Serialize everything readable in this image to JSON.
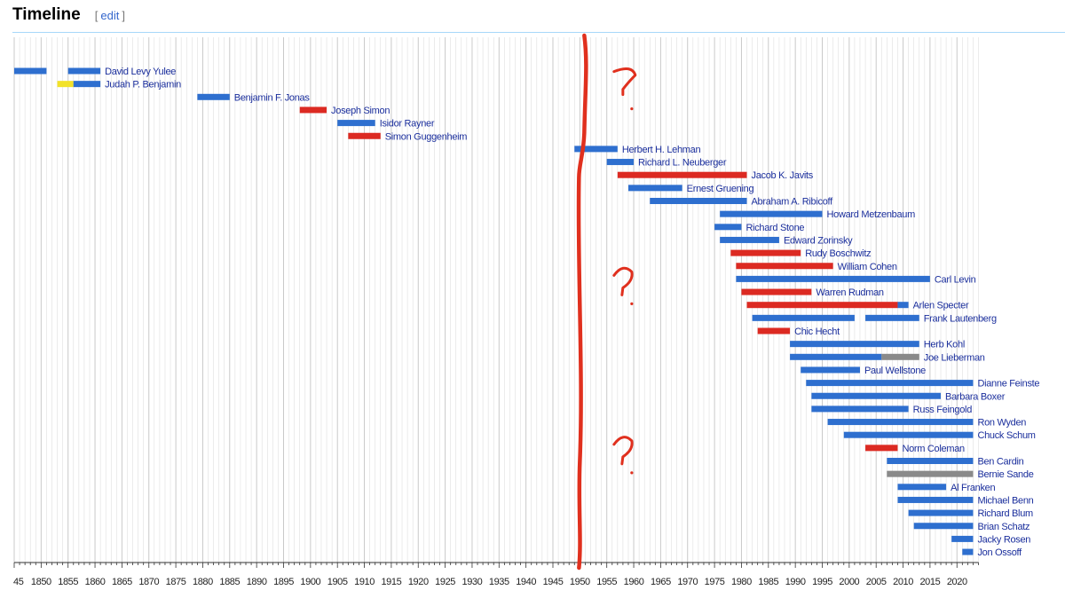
{
  "section": {
    "title": "Timeline",
    "edit_open": "[",
    "edit_label": "edit",
    "edit_close": "]"
  },
  "colors": {
    "democrat": "#2e6fcf",
    "republican": "#dc2a22",
    "independent": "#8a8a8a",
    "whig": "#f2e22a",
    "annotation": "#e0301e",
    "gridline": "#c4c4c4"
  },
  "axis": {
    "year_start": 1845,
    "year_end": 2024,
    "tick_labels": [
      "45",
      "1850",
      "1855",
      "1860",
      "1865",
      "1870",
      "1875",
      "1880",
      "1885",
      "1890",
      "1895",
      "1900",
      "1905",
      "1910",
      "1915",
      "1920",
      "1925",
      "1930",
      "1935",
      "1940",
      "1945",
      "1950",
      "1955",
      "1960",
      "1965",
      "1970",
      "1975",
      "1980",
      "1985",
      "1990",
      "1995",
      "2000",
      "2005",
      "2010",
      "2015",
      "2020"
    ]
  },
  "chart_data": {
    "type": "timeline",
    "title": "Timeline",
    "x_unit": "year",
    "xlim": [
      1845,
      2024
    ],
    "grid": true,
    "series": [
      {
        "name": "David Levy Yulee",
        "segments": [
          {
            "start": 1845,
            "end": 1851,
            "party": "democrat"
          },
          {
            "start": 1855,
            "end": 1861,
            "party": "democrat"
          }
        ]
      },
      {
        "name": "Judah P. Benjamin",
        "segments": [
          {
            "start": 1853,
            "end": 1856,
            "party": "whig"
          },
          {
            "start": 1856,
            "end": 1861,
            "party": "democrat"
          }
        ]
      },
      {
        "name": "Benjamin F. Jonas",
        "segments": [
          {
            "start": 1879,
            "end": 1885,
            "party": "democrat"
          }
        ]
      },
      {
        "name": "Joseph Simon",
        "segments": [
          {
            "start": 1898,
            "end": 1903,
            "party": "republican"
          }
        ]
      },
      {
        "name": "Isidor Rayner",
        "segments": [
          {
            "start": 1905,
            "end": 1912,
            "party": "democrat"
          }
        ]
      },
      {
        "name": "Simon Guggenheim",
        "segments": [
          {
            "start": 1907,
            "end": 1913,
            "party": "republican"
          }
        ]
      },
      {
        "name": "Herbert H. Lehman",
        "segments": [
          {
            "start": 1949,
            "end": 1957,
            "party": "democrat"
          }
        ]
      },
      {
        "name": "Richard L. Neuberger",
        "segments": [
          {
            "start": 1955,
            "end": 1960,
            "party": "democrat"
          }
        ]
      },
      {
        "name": "Jacob K. Javits",
        "segments": [
          {
            "start": 1957,
            "end": 1981,
            "party": "republican"
          }
        ]
      },
      {
        "name": "Ernest Gruening",
        "segments": [
          {
            "start": 1959,
            "end": 1969,
            "party": "democrat"
          }
        ]
      },
      {
        "name": "Abraham A. Ribicoff",
        "segments": [
          {
            "start": 1963,
            "end": 1981,
            "party": "democrat"
          }
        ]
      },
      {
        "name": "Howard Metzenbaum",
        "segments": [
          {
            "start": 1976,
            "end": 1995,
            "party": "democrat"
          }
        ]
      },
      {
        "name": "Richard Stone",
        "segments": [
          {
            "start": 1975,
            "end": 1980,
            "party": "democrat"
          }
        ]
      },
      {
        "name": "Edward Zorinsky",
        "segments": [
          {
            "start": 1976,
            "end": 1987,
            "party": "democrat"
          }
        ]
      },
      {
        "name": "Rudy Boschwitz",
        "segments": [
          {
            "start": 1978,
            "end": 1991,
            "party": "republican"
          }
        ]
      },
      {
        "name": "William Cohen",
        "segments": [
          {
            "start": 1979,
            "end": 1997,
            "party": "republican"
          }
        ]
      },
      {
        "name": "Carl Levin",
        "segments": [
          {
            "start": 1979,
            "end": 2015,
            "party": "democrat"
          }
        ]
      },
      {
        "name": "Warren Rudman",
        "segments": [
          {
            "start": 1980,
            "end": 1993,
            "party": "republican"
          }
        ]
      },
      {
        "name": "Arlen Specter",
        "segments": [
          {
            "start": 1981,
            "end": 2009,
            "party": "republican"
          },
          {
            "start": 2009,
            "end": 2011,
            "party": "democrat"
          }
        ]
      },
      {
        "name": "Frank Lautenberg",
        "segments": [
          {
            "start": 1982,
            "end": 2001,
            "party": "democrat"
          },
          {
            "start": 2003,
            "end": 2013,
            "party": "democrat"
          }
        ]
      },
      {
        "name": "Chic Hecht",
        "segments": [
          {
            "start": 1983,
            "end": 1989,
            "party": "republican"
          }
        ]
      },
      {
        "name": "Herb Kohl",
        "segments": [
          {
            "start": 1989,
            "end": 2013,
            "party": "democrat"
          }
        ]
      },
      {
        "name": "Joe Lieberman",
        "segments": [
          {
            "start": 1989,
            "end": 2006,
            "party": "democrat"
          },
          {
            "start": 2006,
            "end": 2013,
            "party": "independent"
          }
        ]
      },
      {
        "name": "Paul Wellstone",
        "segments": [
          {
            "start": 1991,
            "end": 2002,
            "party": "democrat"
          }
        ]
      },
      {
        "name": "Dianne Feinste",
        "segments": [
          {
            "start": 1992,
            "end": 2023,
            "party": "democrat"
          }
        ]
      },
      {
        "name": "Barbara Boxer",
        "segments": [
          {
            "start": 1993,
            "end": 2017,
            "party": "democrat"
          }
        ]
      },
      {
        "name": "Russ Feingold",
        "segments": [
          {
            "start": 1993,
            "end": 2011,
            "party": "democrat"
          }
        ]
      },
      {
        "name": "Ron Wyden",
        "segments": [
          {
            "start": 1996,
            "end": 2023,
            "party": "democrat"
          }
        ]
      },
      {
        "name": "Chuck Schum",
        "segments": [
          {
            "start": 1999,
            "end": 2023,
            "party": "democrat"
          }
        ]
      },
      {
        "name": "Norm Coleman",
        "segments": [
          {
            "start": 2003,
            "end": 2009,
            "party": "republican"
          }
        ]
      },
      {
        "name": "Ben Cardin",
        "segments": [
          {
            "start": 2007,
            "end": 2023,
            "party": "democrat"
          }
        ]
      },
      {
        "name": "Bernie Sande",
        "segments": [
          {
            "start": 2007,
            "end": 2023,
            "party": "independent"
          }
        ]
      },
      {
        "name": "Al Franken",
        "segments": [
          {
            "start": 2009,
            "end": 2018,
            "party": "democrat"
          }
        ]
      },
      {
        "name": "Michael Benn",
        "segments": [
          {
            "start": 2009,
            "end": 2023,
            "party": "democrat"
          }
        ]
      },
      {
        "name": "Richard Blum",
        "segments": [
          {
            "start": 2011,
            "end": 2023,
            "party": "democrat"
          }
        ]
      },
      {
        "name": "Brian Schatz",
        "segments": [
          {
            "start": 2012,
            "end": 2023,
            "party": "democrat"
          }
        ]
      },
      {
        "name": "Jacky Rosen",
        "segments": [
          {
            "start": 2019,
            "end": 2023,
            "party": "democrat"
          }
        ]
      },
      {
        "name": "Jon Ossoff",
        "segments": [
          {
            "start": 2021,
            "end": 2023,
            "party": "democrat"
          }
        ]
      }
    ],
    "annotations": [
      {
        "type": "handwritten-vertical-line",
        "year": 1950
      },
      {
        "type": "handwritten-text",
        "text": "?",
        "near_year": 1957,
        "near_row": 1
      },
      {
        "type": "handwritten-text",
        "text": "?",
        "near_year": 1957,
        "near_row": 16
      },
      {
        "type": "handwritten-text",
        "text": "?",
        "near_year": 1957,
        "near_row": 29
      }
    ]
  }
}
